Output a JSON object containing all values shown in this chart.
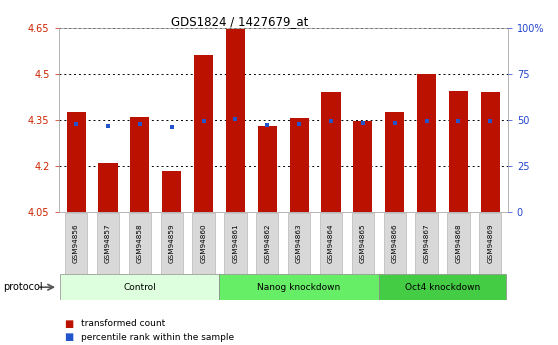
{
  "title": "GDS1824 / 1427679_at",
  "samples": [
    "GSM94856",
    "GSM94857",
    "GSM94858",
    "GSM94859",
    "GSM94860",
    "GSM94861",
    "GSM94862",
    "GSM94863",
    "GSM94864",
    "GSM94865",
    "GSM94866",
    "GSM94867",
    "GSM94868",
    "GSM94869"
  ],
  "transformed_count": [
    4.375,
    4.21,
    4.36,
    4.185,
    4.56,
    4.645,
    4.33,
    4.355,
    4.44,
    4.345,
    4.375,
    4.5,
    4.445,
    4.44
  ],
  "percentile_rank_y": [
    4.336,
    4.329,
    4.337,
    4.328,
    4.347,
    4.352,
    4.335,
    4.337,
    4.345,
    4.341,
    4.339,
    4.347,
    4.347,
    4.346
  ],
  "baseline": 4.05,
  "ylim_left": [
    4.05,
    4.65
  ],
  "ylim_right": [
    0,
    100
  ],
  "yticks_left": [
    4.05,
    4.2,
    4.35,
    4.5,
    4.65
  ],
  "ytick_labels_left": [
    "4.05",
    "4.2",
    "4.35",
    "4.5",
    "4.65"
  ],
  "yticks_right": [
    0,
    25,
    50,
    75,
    100
  ],
  "ytick_labels_right": [
    "0",
    "25",
    "50",
    "75",
    "100%"
  ],
  "bar_color": "#bb1100",
  "dot_color": "#2255cc",
  "grid_color": "#333333",
  "groups": [
    {
      "label": "Control",
      "start": 0,
      "end": 5,
      "color": "#ddffdd"
    },
    {
      "label": "Nanog knockdown",
      "start": 5,
      "end": 10,
      "color": "#66ee66"
    },
    {
      "label": "Oct4 knockdown",
      "start": 10,
      "end": 14,
      "color": "#44cc44"
    }
  ],
  "protocol_label": "protocol",
  "legend_entries": [
    {
      "color": "#bb1100",
      "label": "transformed count"
    },
    {
      "color": "#2255cc",
      "label": "percentile rank within the sample"
    }
  ],
  "left_tick_color": "#cc2200",
  "right_tick_color": "#2244cc",
  "bar_width": 0.6,
  "sample_bg_color": "#d8d8d8",
  "sample_border_color": "#aaaaaa"
}
